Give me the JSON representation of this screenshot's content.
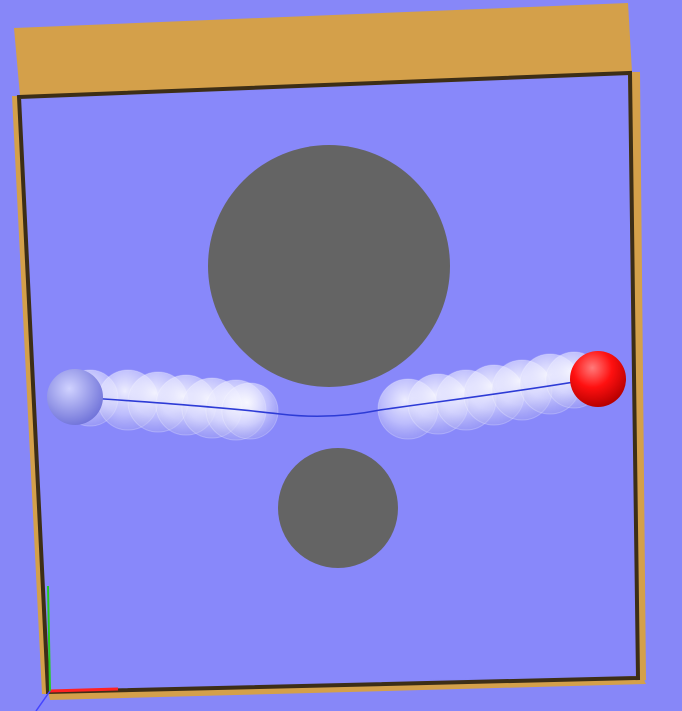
{
  "viewport": {
    "background_color": "#8787f8"
  },
  "scene": {
    "box_color": "#d4a04a",
    "box_inner_color": "#8888fa",
    "box_edge_color": "#3d2e16",
    "obstacle_color": "#646464",
    "path_color": "#2d3bd6",
    "start_marker_color": "#9d9ef3",
    "goal_marker_color": "#ff0000",
    "ghost_color": "#ffffff",
    "axis_colors": {
      "x": "#ff2222",
      "y": "#22cc22",
      "z": "#4444ff"
    }
  }
}
